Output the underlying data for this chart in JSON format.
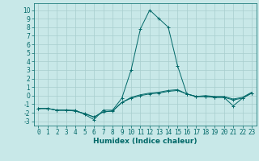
{
  "xlabel": "Humidex (Indice chaleur)",
  "bg_color": "#c8e8e8",
  "grid_color": "#a8cece",
  "line_color": "#006868",
  "xlim": [
    -0.5,
    23.5
  ],
  "ylim": [
    -3.5,
    10.8
  ],
  "xticks": [
    0,
    1,
    2,
    3,
    4,
    5,
    6,
    7,
    8,
    9,
    10,
    11,
    12,
    13,
    14,
    15,
    16,
    17,
    18,
    19,
    20,
    21,
    22,
    23
  ],
  "yticks": [
    -3,
    -2,
    -1,
    0,
    1,
    2,
    3,
    4,
    5,
    6,
    7,
    8,
    9,
    10
  ],
  "line1_x": [
    0,
    1,
    2,
    3,
    4,
    5,
    6,
    7,
    8,
    9,
    10,
    11,
    12,
    13,
    14,
    15,
    16,
    17,
    18,
    19,
    20,
    21,
    22,
    23
  ],
  "line1_y": [
    -1.5,
    -1.5,
    -1.7,
    -1.7,
    -1.7,
    -2.2,
    -2.8,
    -1.7,
    -1.7,
    -0.3,
    3.0,
    7.8,
    10.0,
    9.0,
    8.0,
    3.5,
    0.2,
    -0.1,
    -0.1,
    -0.2,
    -0.2,
    -1.2,
    -0.3,
    0.3
  ],
  "line2_x": [
    0,
    1,
    2,
    3,
    4,
    5,
    6,
    7,
    8,
    9,
    10,
    11,
    12,
    13,
    14,
    15,
    16,
    17,
    18,
    19,
    20,
    21,
    22,
    23
  ],
  "line2_y": [
    -1.5,
    -1.5,
    -1.7,
    -1.7,
    -1.8,
    -2.1,
    -2.5,
    -1.9,
    -1.8,
    -0.8,
    -0.3,
    0.0,
    0.2,
    0.3,
    0.5,
    0.6,
    0.2,
    -0.1,
    -0.1,
    -0.2,
    -0.2,
    -0.5,
    -0.3,
    0.3
  ],
  "line3_x": [
    0,
    1,
    2,
    3,
    4,
    5,
    6,
    7,
    8,
    9,
    10,
    11,
    12,
    13,
    14,
    15,
    16,
    17,
    18,
    19,
    20,
    21,
    22,
    23
  ],
  "line3_y": [
    -1.5,
    -1.5,
    -1.7,
    -1.7,
    -1.8,
    -2.1,
    -2.5,
    -1.9,
    -1.8,
    -0.8,
    -0.2,
    0.1,
    0.3,
    0.4,
    0.6,
    0.7,
    0.2,
    -0.1,
    -0.0,
    -0.1,
    -0.1,
    -0.4,
    -0.2,
    0.4
  ],
  "tick_fontsize": 5.5,
  "xlabel_fontsize": 6.5
}
